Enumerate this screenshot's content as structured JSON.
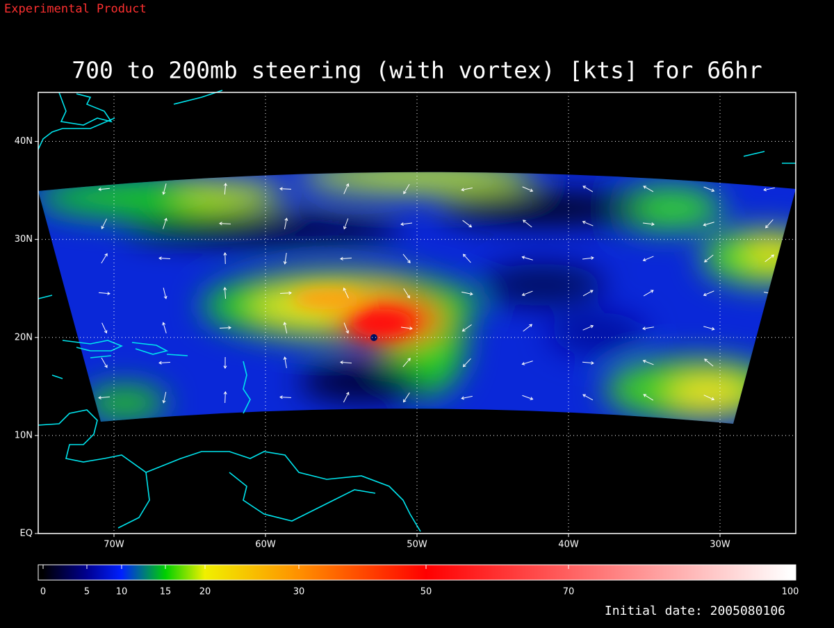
{
  "chart_data": {
    "type": "map",
    "title": "700 to 200mb steering (with vortex) [kts] for 66hr",
    "annotations": [
      "Experimental Product",
      "Initial date: 2005080106"
    ],
    "xlim": [
      -75,
      -25
    ],
    "ylim": [
      0,
      45
    ],
    "xticks": [
      {
        "value": -70,
        "label": "70W"
      },
      {
        "value": -60,
        "label": "60W"
      },
      {
        "value": -50,
        "label": "50W"
      },
      {
        "value": -40,
        "label": "40W"
      },
      {
        "value": -30,
        "label": "30W"
      }
    ],
    "yticks": [
      {
        "value": 0,
        "label": "EQ"
      },
      {
        "value": 10,
        "label": "10N"
      },
      {
        "value": 20,
        "label": "20N"
      },
      {
        "value": 30,
        "label": "30N"
      },
      {
        "value": 40,
        "label": "40N"
      }
    ],
    "grid": true,
    "colorbar": {
      "ticks": [
        0,
        5,
        10,
        15,
        20,
        30,
        50,
        70,
        100
      ]
    }
  }
}
